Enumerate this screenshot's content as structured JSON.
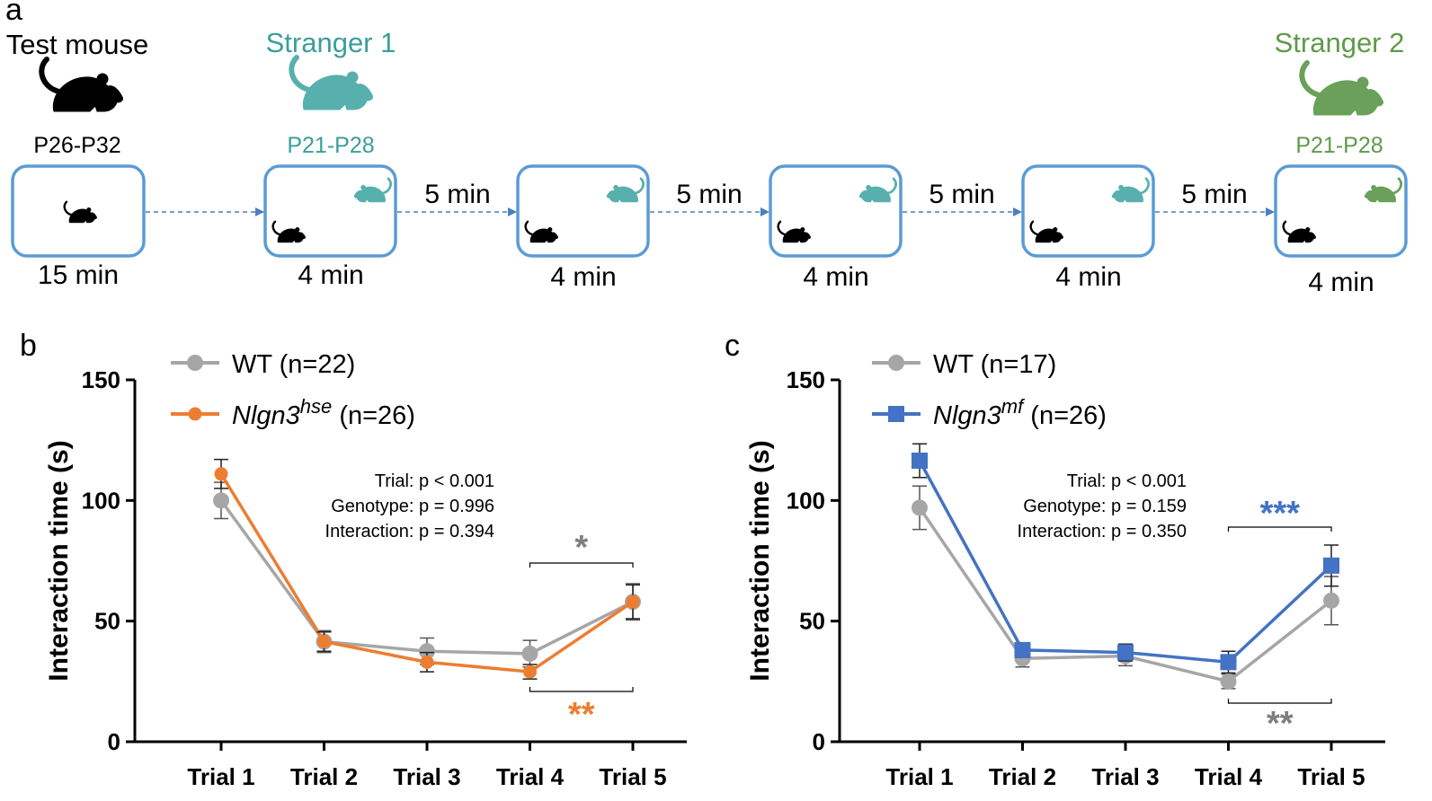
{
  "panel_a": {
    "letter": "a",
    "roles": [
      {
        "name": "Test mouse",
        "age": "P26-P32",
        "color": "#000000"
      },
      {
        "name": "Stranger 1",
        "age": "P21-P28",
        "color": "#3a9e9b"
      },
      {
        "name": "Stranger 2",
        "age": "P21-P28",
        "color": "#5e9a49"
      }
    ],
    "durations": [
      "15 min",
      "4 min",
      "4 min",
      "4 min",
      "4 min",
      "4 min"
    ],
    "intervals": [
      "5 min",
      "5 min",
      "5 min",
      "5 min"
    ],
    "colors": {
      "box": "#5b9bd5",
      "arrow": "#4a7fc1",
      "stranger1": "#58b0ae",
      "stranger2": "#6aa05a",
      "test": "#000000"
    }
  },
  "chart_data": [
    {
      "panel": "b",
      "type": "line",
      "ylabel": "Interaction time (s)",
      "xlabel": "",
      "categories": [
        "Trial 1",
        "Trial 2",
        "Trial 3",
        "Trial 4",
        "Trial 5"
      ],
      "ylim": [
        0,
        150
      ],
      "yticks": [
        "0",
        "50",
        "100",
        "150"
      ],
      "series": [
        {
          "name": "WT (n=22)",
          "color": "#a6a6a6",
          "marker": "circle",
          "values": [
            100,
            41.5,
            37.5,
            36.5,
            58
          ],
          "errors": [
            7.5,
            4.5,
            5.5,
            5.5,
            7.5
          ]
        },
        {
          "name": "Nlgn3",
          "sup": "hse",
          "suffix": " (n=26)",
          "color": "#ed7d31",
          "marker": "circle",
          "values": [
            111,
            41.5,
            33,
            29,
            58
          ],
          "errors": [
            6,
            4,
            4,
            3,
            7
          ]
        }
      ],
      "stats": [
        "Trial: p < 0.001",
        "Genotype: p = 0.996",
        "Interaction: p = 0.394"
      ],
      "annotations": [
        {
          "text": "*",
          "color": "#7f7f7f",
          "between": [
            "Trial 4",
            "Trial 5"
          ],
          "position": "above"
        },
        {
          "text": "**",
          "color": "#ed7d31",
          "between": [
            "Trial 4",
            "Trial 5"
          ],
          "position": "below"
        }
      ]
    },
    {
      "panel": "c",
      "type": "line",
      "ylabel": "Interaction time (s)",
      "xlabel": "",
      "categories": [
        "Trial 1",
        "Trial 2",
        "Trial 3",
        "Trial 4",
        "Trial 5"
      ],
      "ylim": [
        0,
        150
      ],
      "yticks": [
        "0",
        "50",
        "100",
        "150"
      ],
      "series": [
        {
          "name": "WT (n=17)",
          "color": "#a6a6a6",
          "marker": "circle",
          "values": [
            97,
            34.5,
            35.5,
            25,
            58.5
          ],
          "errors": [
            9,
            3.5,
            4,
            3,
            10
          ]
        },
        {
          "name": "Nlgn3",
          "sup": "mf",
          "suffix": " (n=26)",
          "color": "#4472c4",
          "marker": "square",
          "values": [
            116.5,
            38,
            37,
            33,
            73
          ],
          "errors": [
            7,
            3,
            3.5,
            4.5,
            8.5
          ]
        }
      ],
      "stats": [
        "Trial: p < 0.001",
        "Genotype: p = 0.159",
        "Interaction: p = 0.350"
      ],
      "annotations": [
        {
          "text": "***",
          "color": "#4472c4",
          "between": [
            "Trial 4",
            "Trial 5"
          ],
          "position": "above"
        },
        {
          "text": "**",
          "color": "#7f7f7f",
          "between": [
            "Trial 4",
            "Trial 5"
          ],
          "position": "below"
        }
      ]
    }
  ]
}
